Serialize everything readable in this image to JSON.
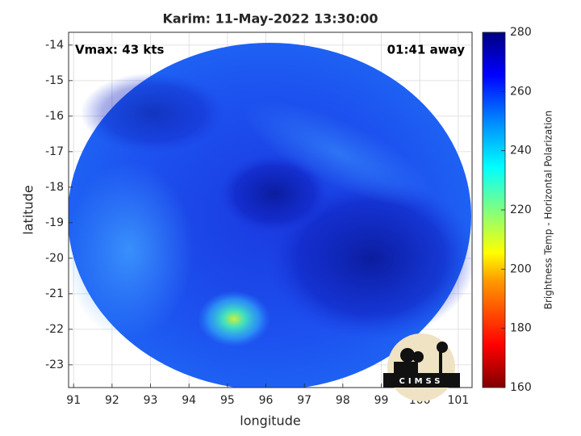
{
  "chart_data": {
    "type": "image",
    "title": "Karim: 11-May-2022 13:30:00",
    "annotations": [
      "Vmax: 43 kts",
      "01:41 away"
    ],
    "x_label": "longitude",
    "y_label": "latitude",
    "xlim": [
      90.87,
      101.36
    ],
    "xticks": [
      91,
      92,
      93,
      94,
      95,
      96,
      97,
      98,
      99,
      100,
      101
    ],
    "ylim": [
      -23.64,
      -13.64
    ],
    "yticks": [
      -14,
      -15,
      -16,
      -17,
      -18,
      -19,
      -20,
      -21,
      -22,
      -23
    ],
    "grid": true,
    "colorbar": {
      "label": "Brightness Temp - Horizontal Polarization",
      "lim": [
        160,
        280
      ],
      "ticks": [
        160,
        180,
        200,
        220,
        240,
        260,
        280
      ]
    }
  },
  "logo": {
    "text": "CIMSS"
  }
}
